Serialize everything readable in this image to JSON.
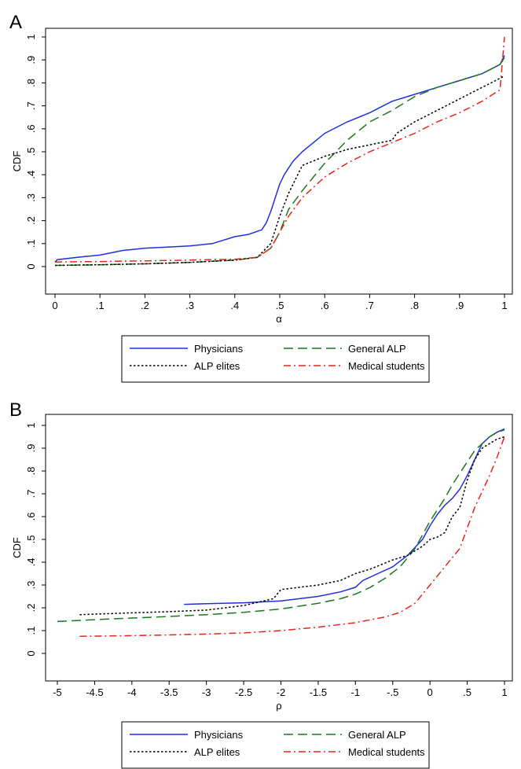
{
  "chart_data": [
    {
      "panel": "A",
      "type": "line",
      "xlabel": "α",
      "ylabel": "CDF",
      "xlim": [
        0,
        1
      ],
      "ylim": [
        0,
        1
      ],
      "xticks": [
        0,
        0.1,
        0.2,
        0.3,
        0.4,
        0.5,
        0.6,
        0.7,
        0.8,
        0.9,
        1
      ],
      "xtick_labels": [
        "0",
        ".1",
        ".2",
        ".3",
        ".4",
        ".5",
        ".6",
        ".7",
        ".8",
        ".9",
        "1"
      ],
      "yticks": [
        0,
        0.1,
        0.2,
        0.3,
        0.4,
        0.5,
        0.6,
        0.7,
        0.8,
        0.9,
        1
      ],
      "ytick_labels": [
        "0",
        ".1",
        ".2",
        ".3",
        ".4",
        ".5",
        ".6",
        ".7",
        ".8",
        ".9",
        "1"
      ],
      "grid": false,
      "legend_position": "bottom",
      "series": [
        {
          "name": "Physicians",
          "color": "#1f2fe0",
          "dash": "solid",
          "x": [
            0,
            0.005,
            0.05,
            0.1,
            0.15,
            0.2,
            0.25,
            0.3,
            0.35,
            0.4,
            0.43,
            0.46,
            0.47,
            0.48,
            0.49,
            0.5,
            0.51,
            0.52,
            0.53,
            0.55,
            0.6,
            0.65,
            0.7,
            0.75,
            0.8,
            0.85,
            0.9,
            0.95,
            0.99,
            1.0
          ],
          "y": [
            0.02,
            0.03,
            0.04,
            0.05,
            0.07,
            0.08,
            0.085,
            0.09,
            0.1,
            0.13,
            0.14,
            0.16,
            0.19,
            0.24,
            0.3,
            0.36,
            0.4,
            0.43,
            0.46,
            0.5,
            0.58,
            0.63,
            0.67,
            0.72,
            0.75,
            0.78,
            0.81,
            0.84,
            0.88,
            0.92
          ]
        },
        {
          "name": "General ALP",
          "color": "#1a7a1a",
          "dash": "longdash",
          "x": [
            0,
            0.1,
            0.2,
            0.3,
            0.4,
            0.45,
            0.48,
            0.5,
            0.52,
            0.55,
            0.6,
            0.65,
            0.7,
            0.75,
            0.8,
            0.85,
            0.9,
            0.95,
            0.99,
            1.0
          ],
          "y": [
            0.005,
            0.008,
            0.012,
            0.018,
            0.028,
            0.04,
            0.08,
            0.15,
            0.25,
            0.33,
            0.45,
            0.55,
            0.63,
            0.68,
            0.74,
            0.78,
            0.81,
            0.84,
            0.88,
            0.91
          ]
        },
        {
          "name": "ALP elites",
          "color": "#000000",
          "dash": "dotted",
          "x": [
            0,
            0.1,
            0.2,
            0.3,
            0.4,
            0.45,
            0.48,
            0.5,
            0.52,
            0.55,
            0.6,
            0.65,
            0.7,
            0.75,
            0.76,
            0.8,
            0.85,
            0.9,
            0.95,
            0.99,
            1.0
          ],
          "y": [
            0.005,
            0.008,
            0.012,
            0.018,
            0.028,
            0.04,
            0.1,
            0.22,
            0.32,
            0.44,
            0.48,
            0.51,
            0.53,
            0.55,
            0.58,
            0.63,
            0.68,
            0.73,
            0.78,
            0.82,
            0.83
          ]
        },
        {
          "name": "Medical students",
          "color": "#e8241c",
          "dash": "dashdot",
          "x": [
            0,
            0.1,
            0.2,
            0.3,
            0.4,
            0.45,
            0.48,
            0.5,
            0.52,
            0.55,
            0.6,
            0.65,
            0.7,
            0.75,
            0.8,
            0.85,
            0.9,
            0.95,
            0.99,
            1.0
          ],
          "y": [
            0.02,
            0.022,
            0.025,
            0.028,
            0.032,
            0.04,
            0.08,
            0.15,
            0.22,
            0.3,
            0.39,
            0.45,
            0.5,
            0.54,
            0.58,
            0.63,
            0.67,
            0.72,
            0.77,
            1.0
          ]
        }
      ]
    },
    {
      "panel": "B",
      "type": "line",
      "xlabel": "ρ",
      "ylabel": "CDF",
      "xlim": [
        -5,
        1
      ],
      "ylim": [
        0,
        1
      ],
      "xticks": [
        -5,
        -4.5,
        -4,
        -3.5,
        -3,
        -2.5,
        -2,
        -1.5,
        -1,
        -0.5,
        0,
        0.5,
        1
      ],
      "xtick_labels": [
        "-5",
        "-4.5",
        "-4",
        "-3.5",
        "-3",
        "-2.5",
        "-2",
        "-1.5",
        "-1",
        "-.5",
        "0",
        ".5",
        "1"
      ],
      "yticks": [
        0,
        0.1,
        0.2,
        0.3,
        0.4,
        0.5,
        0.6,
        0.7,
        0.8,
        0.9,
        1
      ],
      "ytick_labels": [
        "0",
        ".1",
        ".2",
        ".3",
        ".4",
        ".5",
        ".6",
        ".7",
        ".8",
        ".9",
        "1"
      ],
      "grid": false,
      "legend_position": "bottom",
      "series": [
        {
          "name": "Physicians",
          "color": "#1f2fe0",
          "dash": "solid",
          "x": [
            -3.3,
            -3,
            -2.5,
            -2,
            -1.5,
            -1.2,
            -1,
            -0.9,
            -0.7,
            -0.5,
            -0.3,
            -0.1,
            0,
            0.1,
            0.2,
            0.3,
            0.4,
            0.5,
            0.6,
            0.7,
            0.8,
            0.9,
            1.0
          ],
          "y": [
            0.215,
            0.218,
            0.222,
            0.23,
            0.25,
            0.27,
            0.29,
            0.32,
            0.35,
            0.38,
            0.43,
            0.5,
            0.56,
            0.61,
            0.65,
            0.68,
            0.72,
            0.78,
            0.85,
            0.92,
            0.95,
            0.97,
            0.985
          ]
        },
        {
          "name": "General ALP",
          "color": "#1a7a1a",
          "dash": "longdash",
          "x": [
            -5,
            -4.5,
            -4,
            -3.5,
            -3,
            -2.5,
            -2,
            -1.5,
            -1.2,
            -1,
            -0.8,
            -0.6,
            -0.4,
            -0.2,
            0,
            0.1,
            0.2,
            0.3,
            0.4,
            0.5,
            0.6,
            0.7,
            0.8,
            0.9,
            1.0
          ],
          "y": [
            0.14,
            0.148,
            0.155,
            0.162,
            0.17,
            0.18,
            0.195,
            0.22,
            0.24,
            0.26,
            0.29,
            0.33,
            0.38,
            0.46,
            0.58,
            0.63,
            0.68,
            0.74,
            0.79,
            0.84,
            0.89,
            0.92,
            0.95,
            0.97,
            0.98
          ]
        },
        {
          "name": "ALP elites",
          "color": "#000000",
          "dash": "dotted",
          "x": [
            -4.7,
            -4,
            -3.5,
            -3,
            -2.5,
            -2.1,
            -2,
            -1.5,
            -1.2,
            -1,
            -0.8,
            -0.5,
            -0.3,
            -0.1,
            0,
            0.1,
            0.2,
            0.3,
            0.4,
            0.5,
            0.6,
            0.7,
            0.8,
            0.9,
            1.0
          ],
          "y": [
            0.17,
            0.178,
            0.183,
            0.19,
            0.21,
            0.24,
            0.28,
            0.3,
            0.32,
            0.35,
            0.37,
            0.41,
            0.43,
            0.47,
            0.5,
            0.51,
            0.53,
            0.6,
            0.64,
            0.76,
            0.85,
            0.9,
            0.92,
            0.94,
            0.95
          ]
        },
        {
          "name": "Medical students",
          "color": "#e8241c",
          "dash": "dashdot",
          "x": [
            -4.7,
            -4,
            -3.5,
            -3,
            -2.5,
            -2,
            -1.5,
            -1,
            -0.6,
            -0.4,
            -0.2,
            0,
            0.2,
            0.4,
            0.5,
            0.6,
            0.7,
            0.8,
            0.9,
            1.0
          ],
          "y": [
            0.075,
            0.078,
            0.081,
            0.085,
            0.09,
            0.1,
            0.115,
            0.135,
            0.16,
            0.18,
            0.22,
            0.3,
            0.38,
            0.46,
            0.55,
            0.64,
            0.71,
            0.78,
            0.86,
            0.95
          ]
        }
      ]
    }
  ]
}
